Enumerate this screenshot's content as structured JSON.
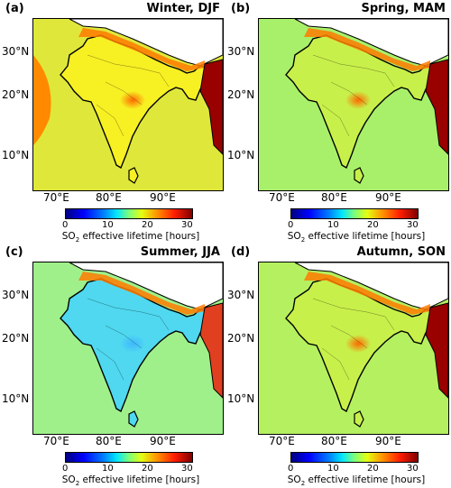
{
  "panels": [
    {
      "label": "(a)",
      "season": "Winter, DJF",
      "base": "#f7f023",
      "ocean": "#dfe83a"
    },
    {
      "label": "(b)",
      "season": "Spring, MAM",
      "base": "#c8f04a",
      "ocean": "#a8f06a"
    },
    {
      "label": "(c)",
      "season": "Summer, JJA",
      "base": "#4fd8f0",
      "ocean": "#9ff08a"
    },
    {
      "label": "(d)",
      "season": "Autumn, SON",
      "base": "#c8f04a",
      "ocean": "#b4f060"
    }
  ],
  "axes": {
    "lat_ticks": [
      "30°N",
      "20°N",
      "10°N"
    ],
    "lon_ticks": [
      "70°E",
      "80°E",
      "90°E"
    ]
  },
  "colorbar": {
    "ticks": [
      "0",
      "10",
      "20",
      "30"
    ],
    "label_prefix": "SO",
    "label_sub": "2",
    "label_suffix": " effective lifetime [hours]",
    "range": [
      0,
      30
    ]
  }
}
